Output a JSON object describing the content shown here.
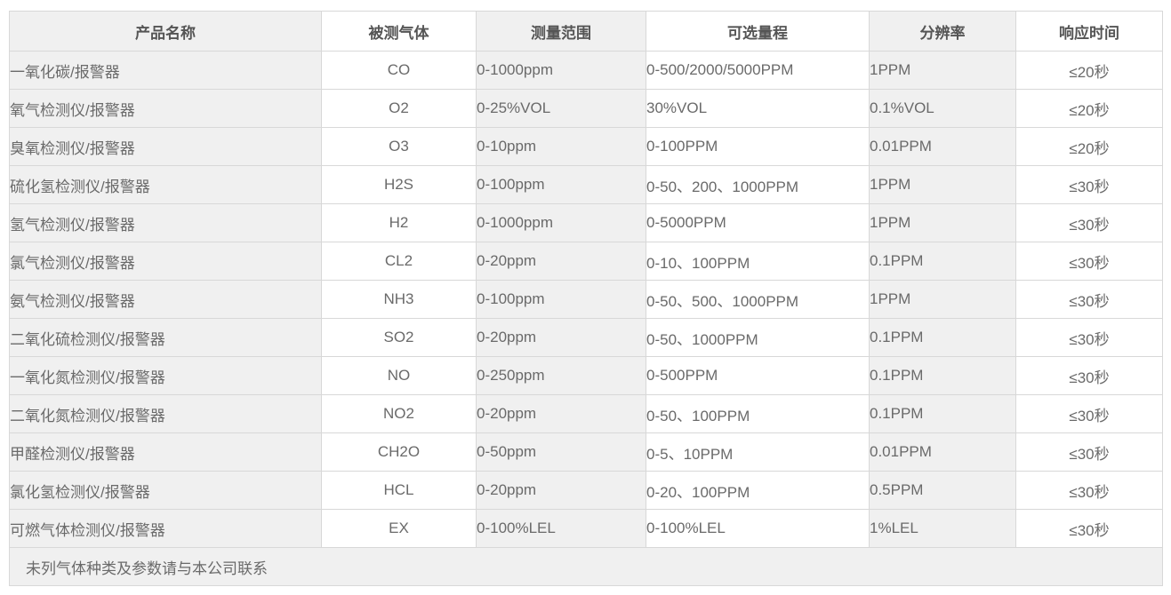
{
  "colors": {
    "stripe_gray": "#f0f0f0",
    "white": "#ffffff",
    "border": "#d8d8d8",
    "header_text": "#555555",
    "body_text": "#6a6a6a"
  },
  "table": {
    "columns": [
      {
        "label": "产品名称"
      },
      {
        "label": "被测气体"
      },
      {
        "label": "测量范围"
      },
      {
        "label": "可选量程"
      },
      {
        "label": "分辨率"
      },
      {
        "label": "响应时间"
      }
    ],
    "rows": [
      [
        "一氧化碳/报警器",
        "CO",
        "0-1000ppm",
        "0-500/2000/5000PPM",
        "1PPM",
        "≤20秒"
      ],
      [
        "氧气检测仪/报警器",
        "O2",
        "0-25%VOL",
        "30%VOL",
        "0.1%VOL",
        "≤20秒"
      ],
      [
        "臭氧检测仪/报警器",
        "O3",
        "0-10ppm",
        "0-100PPM",
        "0.01PPM",
        "≤20秒"
      ],
      [
        "硫化氢检测仪/报警器",
        "H2S",
        "0-100ppm",
        "0-50、200、1000PPM",
        "1PPM",
        "≤30秒"
      ],
      [
        "氢气检测仪/报警器",
        "H2",
        "0-1000ppm",
        "0-5000PPM",
        "1PPM",
        "≤30秒"
      ],
      [
        "氯气检测仪/报警器",
        "CL2",
        "0-20ppm",
        "0-10、100PPM",
        "0.1PPM",
        "≤30秒"
      ],
      [
        "氨气检测仪/报警器",
        "NH3",
        "0-100ppm",
        "0-50、500、1000PPM",
        "1PPM",
        "≤30秒"
      ],
      [
        "二氧化硫检测仪/报警器",
        "SO2",
        "0-20ppm",
        "0-50、1000PPM",
        "0.1PPM",
        "≤30秒"
      ],
      [
        "一氧化氮检测仪/报警器",
        "NO",
        "0-250ppm",
        "0-500PPM",
        "0.1PPM",
        "≤30秒"
      ],
      [
        "二氧化氮检测仪/报警器",
        "NO2",
        "0-20ppm",
        "0-50、100PPM",
        "0.1PPM",
        "≤30秒"
      ],
      [
        "甲醛检测仪/报警器",
        "CH2O",
        "0-50ppm",
        "0-5、10PPM",
        "0.01PPM",
        "≤30秒"
      ],
      [
        "氯化氢检测仪/报警器",
        "HCL",
        "0-20ppm",
        "0-20、100PPM",
        "0.5PPM",
        "≤30秒"
      ],
      [
        "可燃气体检测仪/报警器",
        "EX",
        "0-100%LEL",
        "0-100%LEL",
        "1%LEL",
        "≤30秒"
      ]
    ],
    "footer_note": "未列气体种类及参数请与本公司联系"
  }
}
